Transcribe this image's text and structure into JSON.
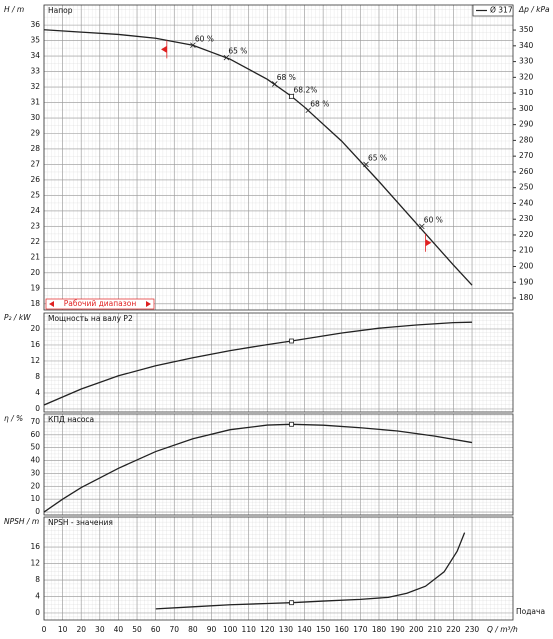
{
  "chart_data": [
    {
      "type": "line",
      "title": "Напор",
      "y_label": "H / m",
      "y2_label": "Δp / kPa",
      "xlim": [
        0,
        252
      ],
      "ylim": [
        17.6,
        37.3
      ],
      "yticks": [
        18,
        19,
        20,
        21,
        22,
        23,
        24,
        25,
        26,
        27,
        28,
        29,
        30,
        31,
        32,
        33,
        34,
        35,
        36
      ],
      "y2lim": [
        172.4,
        365.9
      ],
      "y2ticks": [
        180,
        190,
        200,
        210,
        220,
        230,
        240,
        250,
        260,
        270,
        280,
        290,
        300,
        310,
        320,
        330,
        340,
        350
      ],
      "grid": true,
      "series": [
        {
          "name": "Ø 317",
          "color": "#222222",
          "x": [
            0,
            20,
            40,
            60,
            80,
            100,
            120,
            133,
            140,
            160,
            180,
            200,
            220,
            230
          ],
          "values": [
            35.7,
            35.55,
            35.4,
            35.15,
            34.7,
            33.8,
            32.5,
            31.4,
            30.7,
            28.5,
            25.9,
            23.2,
            20.5,
            19.2
          ]
        }
      ],
      "markers": [
        {
          "x": 133,
          "y": 31.4
        }
      ],
      "annotations": [
        {
          "x": 80,
          "y": 34.7,
          "label": "60 %"
        },
        {
          "x": 98,
          "y": 33.9,
          "label": "65 %"
        },
        {
          "x": 124,
          "y": 32.2,
          "label": "68 %"
        },
        {
          "x": 133,
          "y": 31.4,
          "label": "68.2%"
        },
        {
          "x": 142,
          "y": 30.5,
          "label": "68 %"
        },
        {
          "x": 173,
          "y": 27,
          "label": "65 %"
        },
        {
          "x": 203,
          "y": 23,
          "label": "60 %"
        }
      ],
      "range": {
        "label": "Рабочий диапазон",
        "x": [
          66,
          205
        ],
        "color": "#e02020"
      }
    },
    {
      "type": "line",
      "title": "Мощность на валу P2",
      "y_label": "P₂ / kW",
      "xlim": [
        0,
        252
      ],
      "ylim": [
        -0.75,
        24
      ],
      "yticks": [
        0,
        4,
        8,
        12,
        16,
        20
      ],
      "grid": true,
      "series": [
        {
          "color": "#222222",
          "x": [
            0,
            20,
            40,
            60,
            80,
            100,
            120,
            133,
            160,
            180,
            200,
            220,
            230
          ],
          "values": [
            1,
            5,
            8.3,
            10.8,
            12.8,
            14.6,
            16.1,
            17,
            19,
            20.2,
            21,
            21.6,
            21.7
          ]
        }
      ],
      "markers": [
        {
          "x": 133,
          "y": 17
        }
      ]
    },
    {
      "type": "line",
      "title": "КПД насоса",
      "y_label": "η / %",
      "xlim": [
        0,
        252
      ],
      "ylim": [
        -2.3,
        76.2
      ],
      "yticks": [
        0,
        10,
        20,
        30,
        40,
        50,
        60,
        70
      ],
      "grid": true,
      "series": [
        {
          "color": "#222222",
          "x": [
            0,
            10,
            20,
            40,
            60,
            80,
            100,
            120,
            133,
            150,
            170,
            190,
            210,
            230
          ],
          "values": [
            0,
            10,
            19,
            34,
            47,
            57,
            64,
            67.6,
            68.2,
            67.5,
            65.5,
            63,
            59,
            54
          ]
        }
      ],
      "markers": [
        {
          "x": 133,
          "y": 68.2
        }
      ]
    },
    {
      "type": "line",
      "title": "NPSH - значения",
      "y_label": "NPSH / m",
      "x_label": "Q / m³/h",
      "x_title": "Подача",
      "xlim": [
        0,
        252
      ],
      "ylim": [
        -1.7,
        23.3
      ],
      "yticks": [
        0,
        4,
        8,
        12,
        16
      ],
      "xticks": [
        0,
        10,
        20,
        30,
        40,
        50,
        60,
        70,
        80,
        90,
        100,
        110,
        120,
        130,
        140,
        150,
        160,
        170,
        180,
        190,
        200,
        210,
        220,
        230
      ],
      "grid": true,
      "series": [
        {
          "color": "#222222",
          "x": [
            60,
            80,
            100,
            120,
            133,
            150,
            170,
            185,
            195,
            205,
            215,
            222,
            226
          ],
          "values": [
            1,
            1.5,
            2,
            2.3,
            2.5,
            2.9,
            3.3,
            3.8,
            4.8,
            6.5,
            10,
            15,
            19.5
          ]
        }
      ],
      "markers": [
        {
          "x": 133,
          "y": 2.5
        }
      ]
    }
  ]
}
